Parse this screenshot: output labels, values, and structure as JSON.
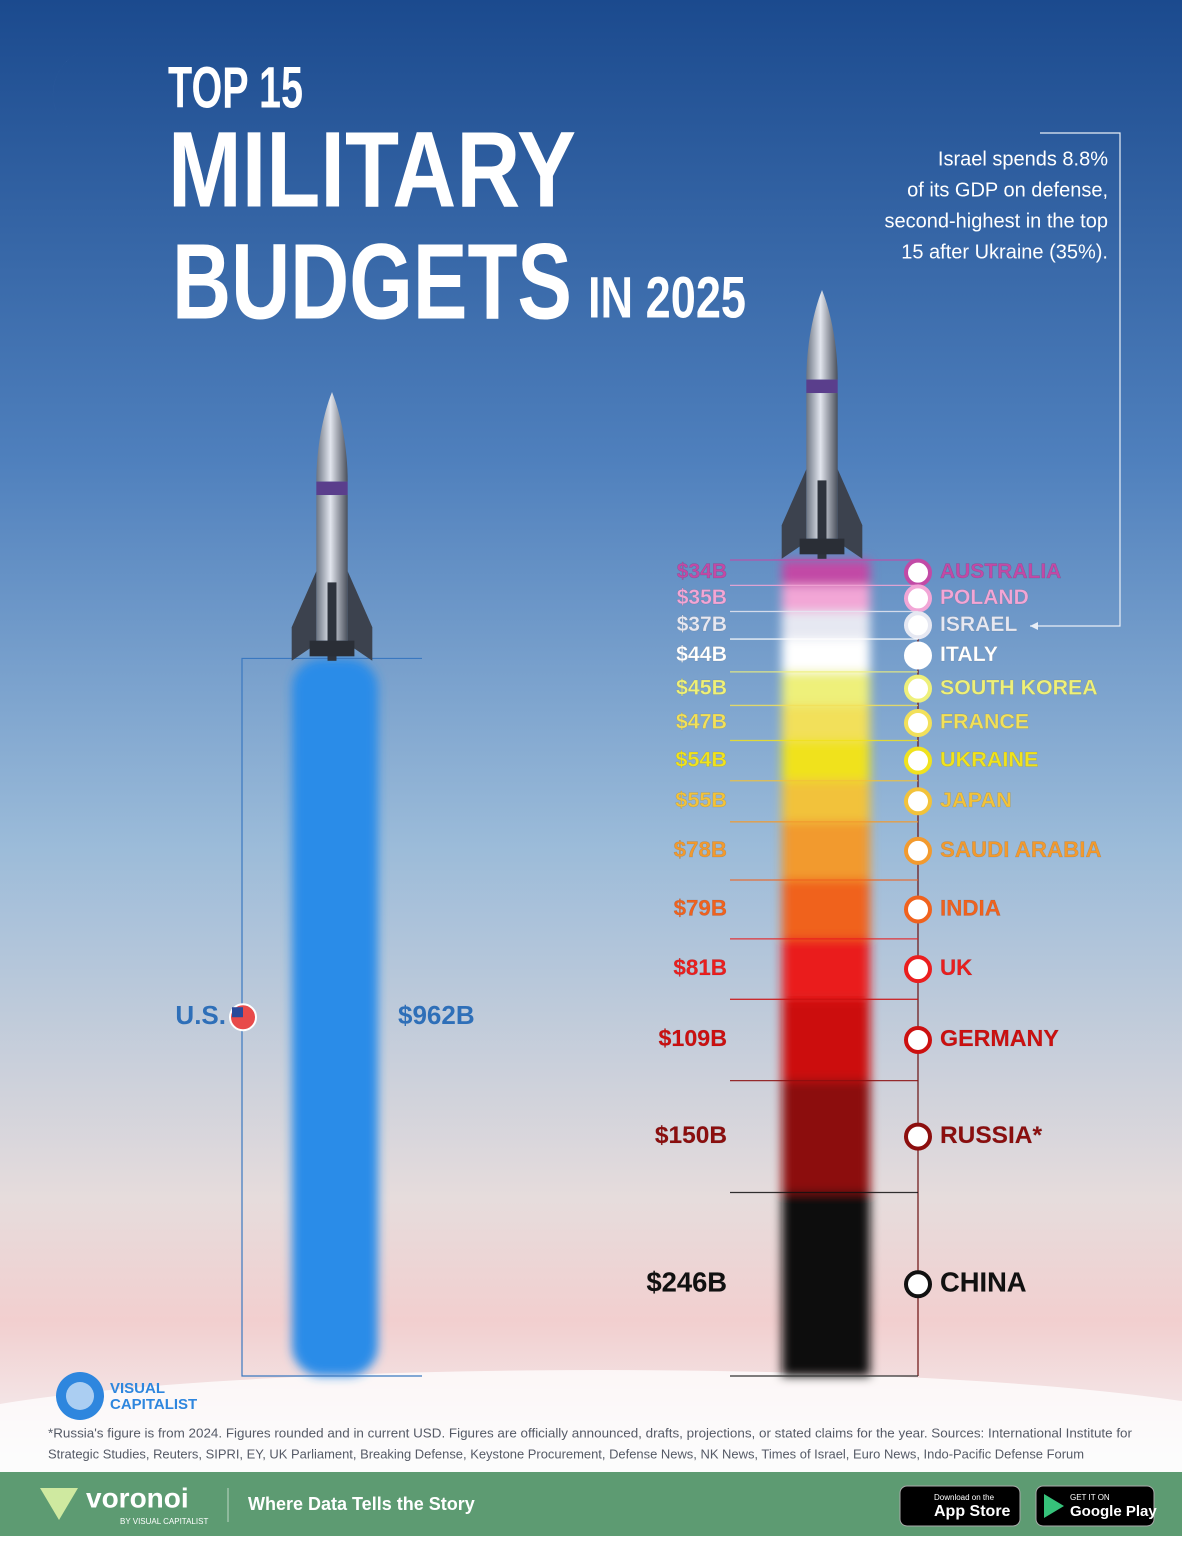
{
  "chart_data": {
    "type": "bar",
    "title_lines": [
      "TOP 15",
      "MILITARY",
      "BUDGETS"
    ],
    "title_suffix": "IN 2025",
    "annotation": [
      "Israel spends 8.8%",
      "of its GDP on defense,",
      "second-highest in the top",
      "15 after Ukraine (35%)."
    ],
    "us": {
      "name": "U.S.",
      "value": 962,
      "value_label": "$962B",
      "color": "#2a8ce8"
    },
    "categories": [
      "AUSTRALIA",
      "POLAND",
      "ISRAEL",
      "ITALY",
      "SOUTH KOREA",
      "FRANCE",
      "UKRAINE",
      "JAPAN",
      "SAUDI ARABIA",
      "INDIA",
      "UK",
      "GERMANY",
      "RUSSIA*",
      "CHINA"
    ],
    "values": [
      34,
      35,
      37,
      44,
      45,
      47,
      54,
      55,
      78,
      79,
      81,
      109,
      150,
      246
    ],
    "value_labels": [
      "$34B",
      "$35B",
      "$37B",
      "$44B",
      "$45B",
      "$47B",
      "$54B",
      "$55B",
      "$78B",
      "$79B",
      "$81B",
      "$109B",
      "$150B",
      "$246B"
    ],
    "colors": [
      "#c24aa6",
      "#f2a6d6",
      "#e6e8f2",
      "#ffffff",
      "#eef07a",
      "#f2e05a",
      "#f0e21e",
      "#f2c23a",
      "#f29a2e",
      "#f0621e",
      "#ea1e1e",
      "#cc1010",
      "#8c0e0e",
      "#111111"
    ],
    "footnote": [
      "*Russia's figure is from 2024. Figures rounded and in current USD. Figures are officially announced, drafts, projections, or stated claims for the year. Sources: International Institute for",
      "Strategic Studies, Reuters, SIPRI, EY, UK Parliament, Breaking Defense, Keystone Procurement, Defense News, NK News, Times of Israel, Euro News, Indo-Pacific Defense Forum"
    ]
  },
  "logo": [
    "VISUAL",
    "CAPITALIST"
  ],
  "footer": {
    "brand": "voronoi",
    "by": "BY VISUAL CAPITALIST",
    "tagline": "Where Data Tells the Story",
    "app_store": [
      "Download on the",
      "App Store"
    ],
    "google_play": [
      "GET IT ON",
      "Google Play"
    ]
  }
}
